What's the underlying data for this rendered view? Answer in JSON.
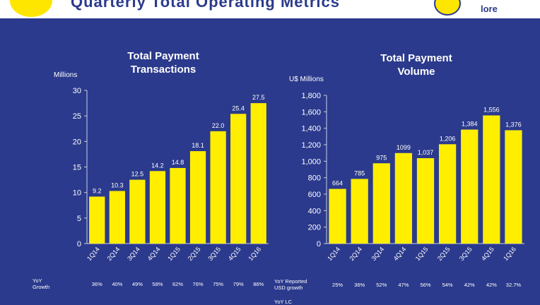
{
  "banner": {
    "title": "Quarterly Total Operating Metrics",
    "logo_text": "lore"
  },
  "chart_data": [
    {
      "type": "bar",
      "title": "Total Payment Transactions",
      "title_lines": [
        "Total Payment",
        "Transactions"
      ],
      "ylabel": "Millions",
      "categories": [
        "1Q14",
        "2Q14",
        "3Q14",
        "4Q14",
        "1Q15",
        "2Q15",
        "3Q15",
        "4Q15",
        "1Q16"
      ],
      "values": [
        9.2,
        10.3,
        12.5,
        14.2,
        14.8,
        18.1,
        22.0,
        25.4,
        27.5
      ],
      "value_labels": [
        "9.2",
        "10.3",
        "12.5",
        "14.2",
        "14.8",
        "18.1",
        "22.0",
        "25.4",
        "27.5"
      ],
      "ylim": [
        0,
        30
      ],
      "yticks": [
        "0",
        "5",
        "10",
        "15",
        "20",
        "25",
        "30"
      ],
      "ytick_values": [
        0,
        5,
        10,
        15,
        20,
        25,
        30
      ],
      "bar_color": "#ffee00",
      "growth_row": {
        "label_lines": [
          "YoY",
          "Growth"
        ],
        "values": [
          "36%",
          "40%",
          "49%",
          "58%",
          "62%",
          "76%",
          "75%",
          "79%",
          "86%"
        ]
      }
    },
    {
      "type": "bar",
      "title": "Total Payment Volume",
      "title_lines": [
        "Total Payment",
        "Volume"
      ],
      "ylabel": "U$ Millions",
      "categories": [
        "1Q14",
        "2Q14",
        "3Q14",
        "4Q14",
        "1Q15",
        "2Q15",
        "3Q15",
        "4Q15",
        "1Q16"
      ],
      "values": [
        664,
        785,
        975,
        1099,
        1037,
        1206,
        1384,
        1556,
        1376
      ],
      "value_labels": [
        "664",
        "785",
        "975",
        "1099",
        "1,037",
        "1,206",
        "1,384",
        "1,556",
        "1,376"
      ],
      "ylim": [
        0,
        1800
      ],
      "yticks": [
        "0",
        "200",
        "400",
        "600",
        "800",
        "1,000",
        "1,200",
        "1,400",
        "1,600",
        "1,800"
      ],
      "ytick_values": [
        0,
        200,
        400,
        600,
        800,
        1000,
        1200,
        1400,
        1600,
        1800
      ],
      "bar_color": "#ffee00",
      "growth_row": {
        "label_lines": [
          "YoY Reported",
          "USD growth"
        ],
        "values": [
          "25%",
          "36%",
          "52%",
          "47%",
          "56%",
          "54%",
          "42%",
          "42%",
          "32.7%"
        ]
      },
      "extra_row_label": "YoY LC"
    }
  ]
}
